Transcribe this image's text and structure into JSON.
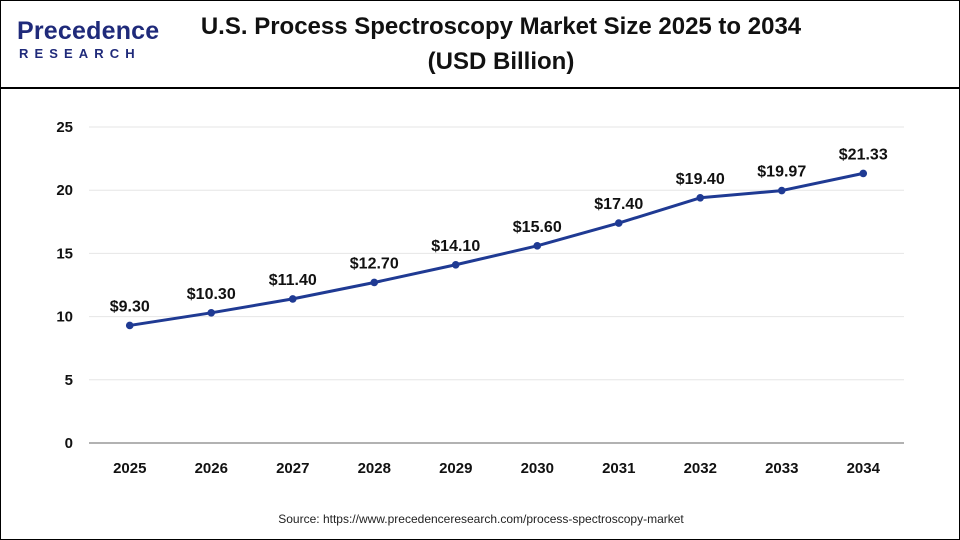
{
  "brand": {
    "name": "Precedence",
    "sub": "RESEARCH"
  },
  "header": {
    "title_line1": "U.S. Process Spectroscopy Market Size 2025 to 2034",
    "title_line2": "(USD Billion)"
  },
  "source": "Source: https://www.precedenceresearch.com/process-spectroscopy-market",
  "colors": {
    "line": "#1f3a93",
    "grid": "#e6e6e6",
    "axis": "#999999",
    "brand": "#1f2a7a"
  },
  "chart_data": {
    "type": "line",
    "title": "U.S. Process Spectroscopy Market Size 2025 to 2034 (USD Billion)",
    "xlabel": "",
    "ylabel": "",
    "categories": [
      "2025",
      "2026",
      "2027",
      "2028",
      "2029",
      "2030",
      "2031",
      "2032",
      "2033",
      "2034"
    ],
    "values": [
      9.3,
      10.3,
      11.4,
      12.7,
      14.1,
      15.6,
      17.4,
      19.4,
      19.97,
      21.33
    ],
    "labels": [
      "$9.30",
      "$10.30",
      "$11.40",
      "$12.70",
      "$14.10",
      "$15.60",
      "$17.40",
      "$19.40",
      "$19.97",
      "$21.33"
    ],
    "yticks": [
      0,
      5,
      10,
      15,
      20,
      25
    ],
    "ylim": [
      0,
      25
    ],
    "grid": true
  }
}
